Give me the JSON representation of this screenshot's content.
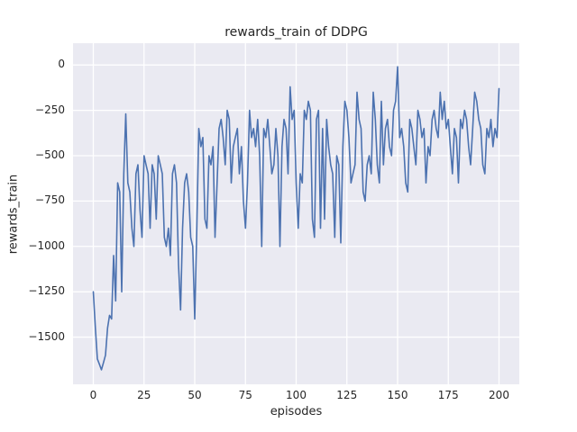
{
  "figure": {
    "background": "#ffffff"
  },
  "chart_data": {
    "type": "line",
    "title": "rewards_train of DDPG",
    "xlabel": "episodes",
    "ylabel": "rewards_train",
    "x_start": 0,
    "x_step": 1,
    "values": [
      -1250,
      -1450,
      -1620,
      -1650,
      -1680,
      -1640,
      -1600,
      -1450,
      -1380,
      -1400,
      -1050,
      -1300,
      -650,
      -700,
      -1250,
      -600,
      -270,
      -650,
      -700,
      -900,
      -1000,
      -600,
      -550,
      -800,
      -950,
      -500,
      -550,
      -600,
      -900,
      -550,
      -600,
      -850,
      -500,
      -550,
      -600,
      -950,
      -1000,
      -900,
      -1050,
      -600,
      -550,
      -650,
      -1100,
      -1350,
      -900,
      -650,
      -600,
      -700,
      -950,
      -1000,
      -1400,
      -900,
      -350,
      -450,
      -400,
      -850,
      -900,
      -500,
      -550,
      -450,
      -950,
      -650,
      -350,
      -300,
      -400,
      -550,
      -250,
      -300,
      -650,
      -450,
      -400,
      -350,
      -600,
      -450,
      -750,
      -900,
      -650,
      -250,
      -400,
      -350,
      -450,
      -300,
      -500,
      -1000,
      -350,
      -400,
      -300,
      -450,
      -600,
      -550,
      -350,
      -500,
      -1000,
      -450,
      -300,
      -350,
      -600,
      -120,
      -300,
      -250,
      -650,
      -900,
      -600,
      -650,
      -250,
      -300,
      -200,
      -250,
      -850,
      -950,
      -300,
      -250,
      -900,
      -350,
      -850,
      -300,
      -450,
      -550,
      -600,
      -950,
      -500,
      -550,
      -980,
      -450,
      -200,
      -250,
      -400,
      -650,
      -600,
      -550,
      -150,
      -300,
      -350,
      -700,
      -750,
      -550,
      -500,
      -600,
      -150,
      -300,
      -550,
      -650,
      -200,
      -550,
      -350,
      -300,
      -450,
      -500,
      -250,
      -200,
      -10,
      -400,
      -350,
      -450,
      -650,
      -700,
      -300,
      -350,
      -450,
      -550,
      -250,
      -300,
      -400,
      -350,
      -650,
      -450,
      -500,
      -300,
      -250,
      -350,
      -400,
      -150,
      -300,
      -200,
      -350,
      -300,
      -450,
      -600,
      -350,
      -400,
      -650,
      -300,
      -350,
      -250,
      -300,
      -450,
      -550,
      -350,
      -150,
      -200,
      -300,
      -350,
      -550,
      -600,
      -350,
      -400,
      -300,
      -450,
      -350,
      -400,
      -130
    ],
    "xlim": [
      -10,
      210
    ],
    "ylim": [
      -1760,
      120
    ],
    "xticks": [
      0,
      25,
      50,
      75,
      100,
      125,
      150,
      175,
      200
    ],
    "yticks": [
      0,
      -250,
      -500,
      -750,
      -1000,
      -1250,
      -1500
    ],
    "grid": true,
    "legend": "none",
    "line_color": "#4c72b0",
    "plot_background": "#eaeaf2",
    "grid_color": "#ffffff",
    "text_color": "#262626"
  }
}
